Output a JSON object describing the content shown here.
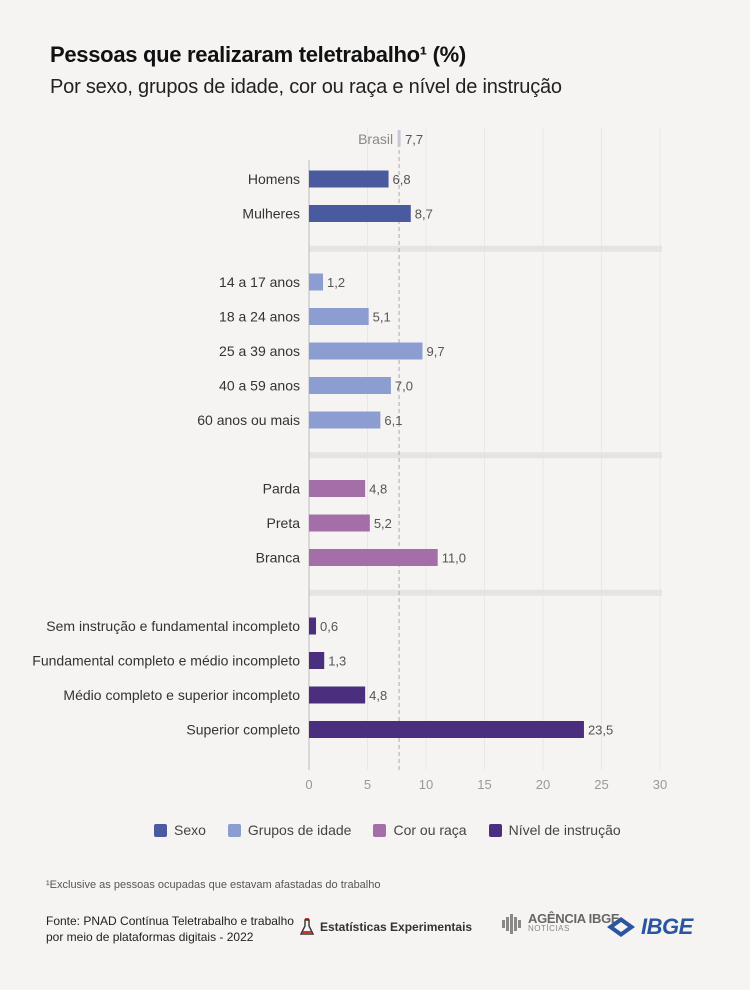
{
  "title": "Pessoas que realizaram teletrabalho¹ (%)",
  "subtitle": "Por sexo, grupos de idade, cor ou raça e nível de instrução",
  "chart_data": {
    "type": "bar",
    "orientation": "horizontal",
    "xlim": [
      0,
      30
    ],
    "xticks": [
      "0",
      "5",
      "10",
      "15",
      "20",
      "25",
      "30"
    ],
    "grid": true,
    "reference": {
      "label": "Brasil",
      "value": 7.7,
      "value_label": "7,7"
    },
    "groups": [
      {
        "name": "Sexo",
        "color": "#4a5a9f",
        "bars": [
          {
            "label": "Homens",
            "value": 6.8,
            "value_label": "6,8"
          },
          {
            "label": "Mulheres",
            "value": 8.7,
            "value_label": "8,7"
          }
        ]
      },
      {
        "name": "Grupos de idade",
        "color": "#8c9ed1",
        "bars": [
          {
            "label": "14 a 17 anos",
            "value": 1.2,
            "value_label": "1,2"
          },
          {
            "label": "18 a 24 anos",
            "value": 5.1,
            "value_label": "5,1"
          },
          {
            "label": "25 a 39 anos",
            "value": 9.7,
            "value_label": "9,7"
          },
          {
            "label": "40 a 59 anos",
            "value": 7.0,
            "value_label": "7,0"
          },
          {
            "label": "60 anos ou mais",
            "value": 6.1,
            "value_label": "6,1"
          }
        ]
      },
      {
        "name": "Cor ou raça",
        "color": "#a46ea8",
        "bars": [
          {
            "label": "Parda",
            "value": 4.8,
            "value_label": "4,8"
          },
          {
            "label": "Preta",
            "value": 5.2,
            "value_label": "5,2"
          },
          {
            "label": "Branca",
            "value": 11.0,
            "value_label": "11,0"
          }
        ]
      },
      {
        "name": "Nível de instrução",
        "color": "#4b2e7d",
        "bars": [
          {
            "label": "Sem instrução e fundamental incompleto",
            "value": 0.6,
            "value_label": "0,6"
          },
          {
            "label": "Fundamental completo e médio incompleto",
            "value": 1.3,
            "value_label": "1,3"
          },
          {
            "label": "Médio completo e superior incompleto",
            "value": 4.8,
            "value_label": "4,8"
          },
          {
            "label": "Superior completo",
            "value": 23.5,
            "value_label": "23,5"
          }
        ]
      }
    ],
    "legend_position": "bottom"
  },
  "footnote": "¹Exclusive as pessoas ocupadas que estavam afastadas do trabalho",
  "source": {
    "line1": "Fonte: PNAD Contínua Teletrabalho e trabalho",
    "line2": "por meio de plataformas digitais - 2022"
  },
  "logos": {
    "experimentais": "Estatísticas Experimentais",
    "agencia_big": "AGÊNCIA IBGE",
    "agencia_small": "NOTÍCIAS",
    "ibge": "IBGE",
    "icon_names": [
      "experimental-flask-icon",
      "agencia-ibge-logo",
      "ibge-logo"
    ]
  }
}
